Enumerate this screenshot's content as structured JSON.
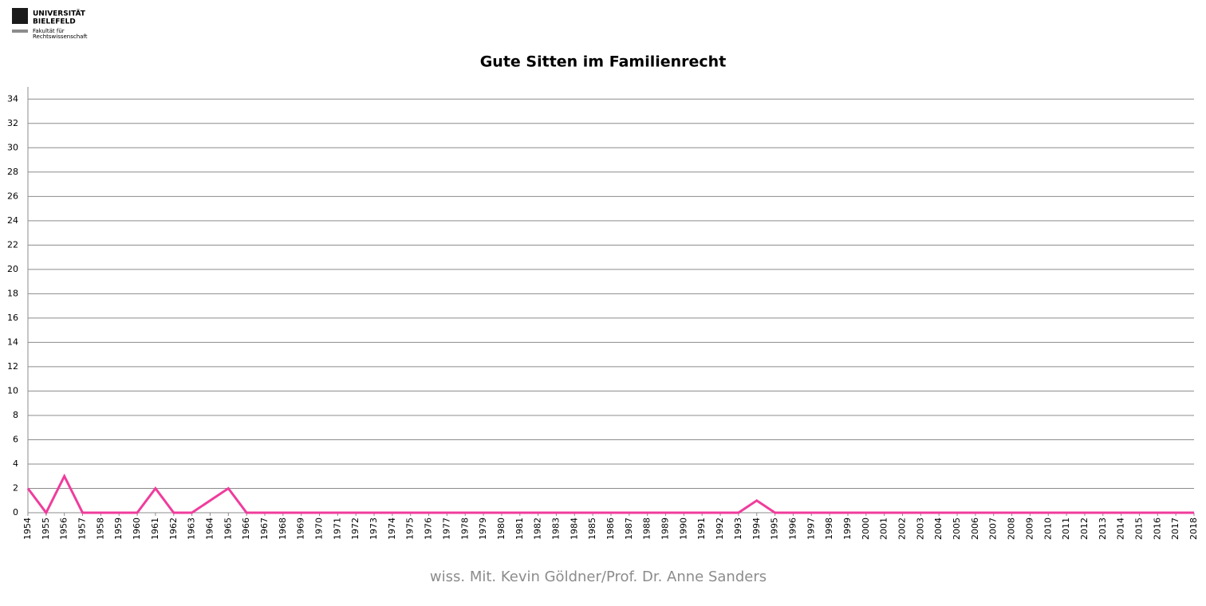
{
  "logo": {
    "university": [
      "UNIVERSITÄT",
      "BIELEFELD"
    ],
    "faculty": [
      "Fakultät für",
      "Rechtswissenschaft"
    ]
  },
  "chart_data": {
    "type": "line",
    "title": "Gute Sitten im Familienrecht",
    "categories": [
      "1954",
      "1955",
      "1956",
      "1957",
      "1958",
      "1959",
      "1960",
      "1961",
      "1962",
      "1963",
      "1964",
      "1965",
      "1966",
      "1967",
      "1968",
      "1969",
      "1970",
      "1971",
      "1972",
      "1973",
      "1974",
      "1975",
      "1976",
      "1977",
      "1978",
      "1979",
      "1980",
      "1981",
      "1982",
      "1983",
      "1984",
      "1985",
      "1986",
      "1987",
      "1988",
      "1989",
      "1990",
      "1991",
      "1992",
      "1993",
      "1994",
      "1995",
      "1996",
      "1997",
      "1998",
      "1999",
      "2000",
      "2001",
      "2002",
      "2003",
      "2004",
      "2005",
      "2006",
      "2007",
      "2008",
      "2009",
      "2010",
      "2011",
      "2012",
      "2013",
      "2014",
      "2015",
      "2016",
      "2017",
      "2018"
    ],
    "values": [
      2,
      0,
      3,
      0,
      0,
      0,
      0,
      2,
      0,
      0,
      1,
      2,
      0,
      0,
      0,
      0,
      0,
      0,
      0,
      0,
      0,
      0,
      0,
      0,
      0,
      0,
      0,
      0,
      0,
      0,
      0,
      0,
      0,
      0,
      0,
      0,
      0,
      0,
      0,
      0,
      1,
      0,
      0,
      0,
      0,
      0,
      0,
      0,
      0,
      0,
      0,
      0,
      0,
      0,
      0,
      0,
      0,
      0,
      0,
      0,
      0,
      0,
      0,
      0,
      0
    ],
    "color": "#f03c9c",
    "ylim": [
      0,
      35
    ],
    "yticks": [
      0,
      2,
      4,
      6,
      8,
      10,
      12,
      14,
      16,
      18,
      20,
      22,
      24,
      26,
      28,
      30,
      32,
      34
    ],
    "grid": true
  },
  "footer": "wiss. Mit. Kevin Göldner/Prof.  Dr. Anne Sanders"
}
